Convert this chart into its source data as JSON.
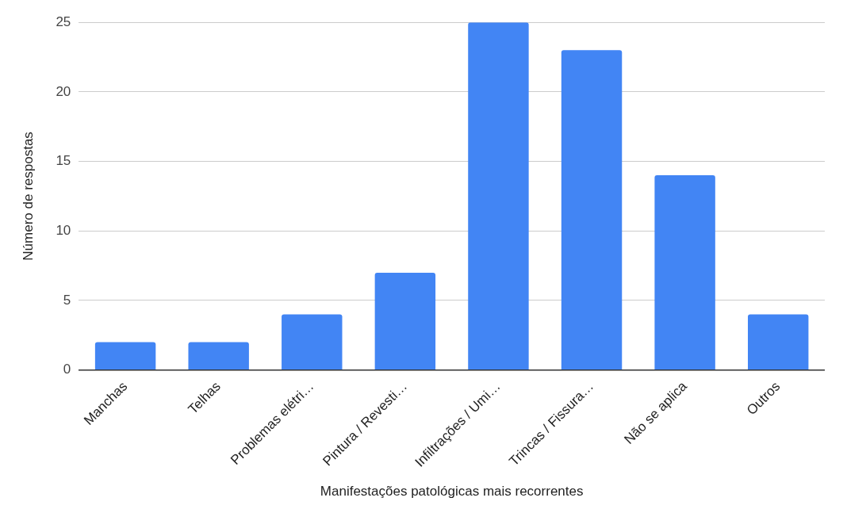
{
  "chart_data": {
    "type": "bar",
    "xlabel": "Manifestações patológicas mais recorrentes",
    "ylabel": "Número de respostas",
    "categories": [
      "Manchas",
      "Telhas",
      "Problemas elétri…",
      "Pintura / Revesti…",
      "Infiltrações / Umi…",
      "Trincas / Fissura…",
      "Não se aplica",
      "Outros"
    ],
    "values": [
      2,
      2,
      4,
      7,
      25,
      23,
      14,
      4
    ],
    "color": "#4285f4",
    "ylim": [
      0,
      25
    ],
    "yticks": [
      0,
      5,
      10,
      15,
      20,
      25
    ],
    "grid": "y",
    "legend": false
  }
}
